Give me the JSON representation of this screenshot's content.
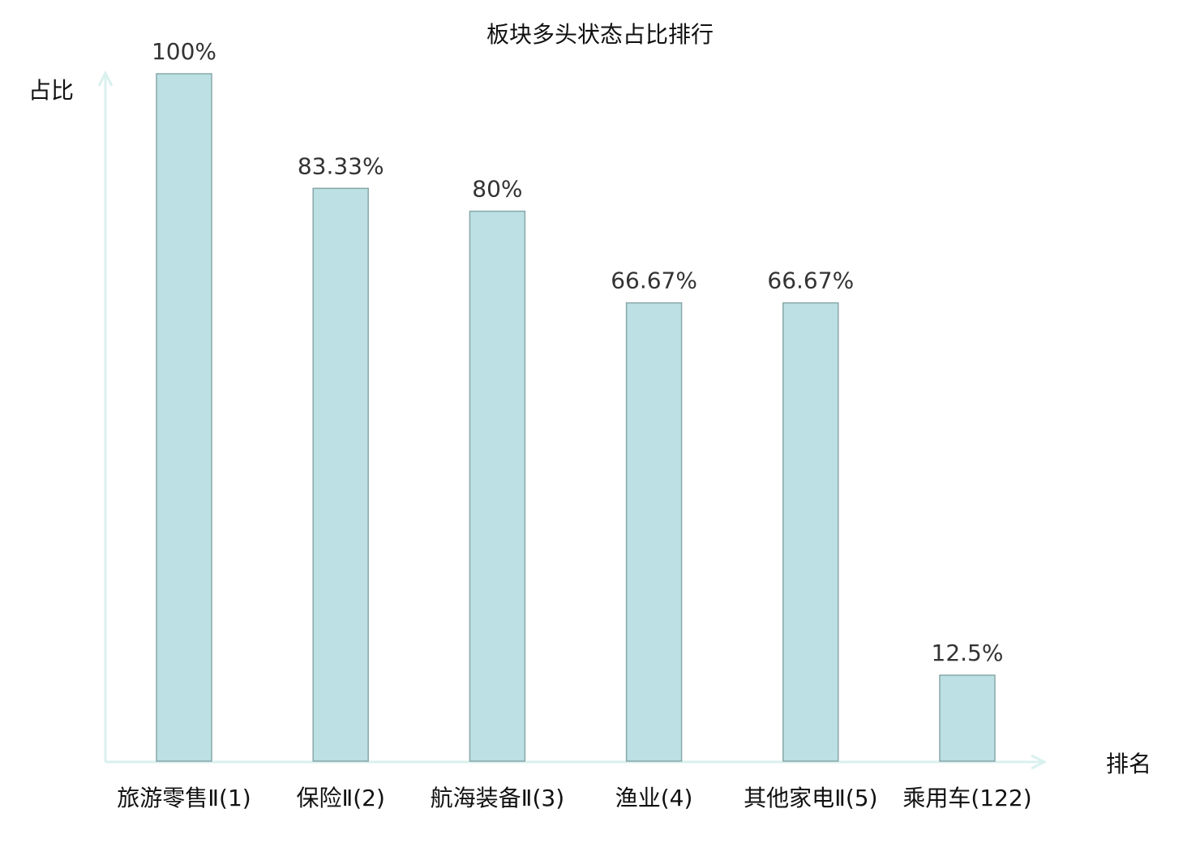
{
  "chart_data": {
    "type": "bar",
    "title": "板块多头状态占比排行",
    "ylabel": "占比",
    "xlabel": "排名",
    "categories": [
      "旅游零售Ⅱ(1)",
      "保险Ⅱ(2)",
      "航海装备Ⅱ(3)",
      "渔业(4)",
      "其他家电Ⅱ(5)",
      "乘用车(122)"
    ],
    "values": [
      100,
      83.33,
      80,
      66.67,
      66.67,
      12.5
    ],
    "data_labels": [
      "100%",
      "83.33%",
      "80%",
      "66.67%",
      "66.67%",
      "12.5%"
    ],
    "ylim": [
      0,
      100
    ],
    "grid": false,
    "highlight_index": 5,
    "colors": {
      "bar_fill": "#bce0e3",
      "bar_stroke": "#88a7a9",
      "axis": "#daf1ee",
      "highlight_text": "#ff0000",
      "text": "#111111"
    }
  }
}
